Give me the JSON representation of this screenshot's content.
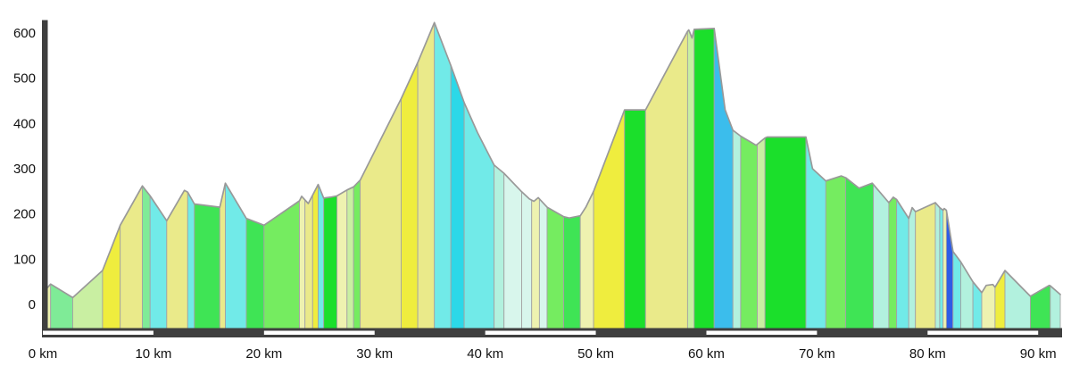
{
  "chart_data": {
    "type": "area",
    "description": "Route elevation profile with slope-colored segment bands",
    "x_unit": "km",
    "y_unit": "m",
    "xlim": [
      0,
      92
    ],
    "ylim": [
      0,
      650
    ],
    "grid": false,
    "legend": "none",
    "y_ticks": [
      {
        "m": 600,
        "label": "600"
      },
      {
        "m": 500,
        "label": "500"
      },
      {
        "m": 400,
        "label": "400"
      },
      {
        "m": 300,
        "label": "300"
      },
      {
        "m": 200,
        "label": "200"
      },
      {
        "m": 100,
        "label": "100"
      },
      {
        "m": 0,
        "label": "0"
      }
    ],
    "x_ticks": [
      {
        "km": 0,
        "label": "0 km"
      },
      {
        "km": 10,
        "label": "10 km"
      },
      {
        "km": 20,
        "label": "20 km"
      },
      {
        "km": 30,
        "label": "30 km"
      },
      {
        "km": 40,
        "label": "40 km"
      },
      {
        "km": 50,
        "label": "50 km"
      },
      {
        "km": 60,
        "label": "60 km"
      },
      {
        "km": 70,
        "label": "70 km"
      },
      {
        "km": 80,
        "label": "80 km"
      },
      {
        "km": 90,
        "label": "90 km"
      }
    ],
    "profile_points_km_m": [
      [
        0,
        25
      ],
      [
        0.7,
        45
      ],
      [
        2.7,
        15
      ],
      [
        5.4,
        75
      ],
      [
        7.0,
        175
      ],
      [
        9.0,
        262
      ],
      [
        9.7,
        240
      ],
      [
        11.2,
        185
      ],
      [
        12.8,
        252
      ],
      [
        13.1,
        248
      ],
      [
        13.7,
        222
      ],
      [
        16.0,
        215
      ],
      [
        16.5,
        268
      ],
      [
        18.4,
        190
      ],
      [
        20.0,
        175
      ],
      [
        23.2,
        229
      ],
      [
        23.4,
        239
      ],
      [
        24.0,
        223
      ],
      [
        24.9,
        265
      ],
      [
        25.4,
        235
      ],
      [
        26.0,
        237
      ],
      [
        26.6,
        240
      ],
      [
        27.5,
        253
      ],
      [
        28.1,
        260
      ],
      [
        28.7,
        275
      ],
      [
        32.4,
        455
      ],
      [
        33.9,
        535
      ],
      [
        35.4,
        623
      ],
      [
        36.9,
        528
      ],
      [
        38.1,
        446
      ],
      [
        39.3,
        380
      ],
      [
        40.8,
        308
      ],
      [
        41.7,
        290
      ],
      [
        43.3,
        249
      ],
      [
        44.0,
        233
      ],
      [
        44.4,
        228
      ],
      [
        44.8,
        236
      ],
      [
        45.6,
        215
      ],
      [
        47.1,
        194
      ],
      [
        47.6,
        191
      ],
      [
        48.6,
        196
      ],
      [
        49.1,
        215
      ],
      [
        49.8,
        250
      ],
      [
        52.6,
        430
      ],
      [
        54.5,
        430
      ],
      [
        58.3,
        604
      ],
      [
        58.4,
        607
      ],
      [
        58.7,
        589
      ],
      [
        58.9,
        608
      ],
      [
        60.7,
        610
      ],
      [
        61.7,
        430
      ],
      [
        62.4,
        385
      ],
      [
        63.1,
        372
      ],
      [
        64.5,
        352
      ],
      [
        64.6,
        354
      ],
      [
        65.3,
        368
      ],
      [
        65.5,
        370
      ],
      [
        69.0,
        370
      ],
      [
        69.6,
        300
      ],
      [
        70.8,
        273
      ],
      [
        72.2,
        284
      ],
      [
        72.6,
        280
      ],
      [
        73.8,
        257
      ],
      [
        75.0,
        268
      ],
      [
        76.5,
        225
      ],
      [
        76.9,
        237
      ],
      [
        77.2,
        232
      ],
      [
        78.3,
        190
      ],
      [
        78.6,
        214
      ],
      [
        78.9,
        205
      ],
      [
        80.7,
        225
      ],
      [
        81.1,
        214
      ],
      [
        81.4,
        208
      ],
      [
        81.5,
        212
      ],
      [
        81.7,
        208
      ],
      [
        82.3,
        117
      ],
      [
        83.0,
        94
      ],
      [
        84.1,
        50
      ],
      [
        84.9,
        26
      ],
      [
        85.3,
        42
      ],
      [
        85.9,
        44
      ],
      [
        86.1,
        38
      ],
      [
        87.0,
        75
      ],
      [
        89.3,
        18
      ],
      [
        91.0,
        42
      ],
      [
        91.1,
        41
      ],
      [
        92.0,
        22
      ]
    ],
    "bands": [
      {
        "from": 0.0,
        "to": 0.7,
        "color": "cream"
      },
      {
        "from": 0.7,
        "to": 2.7,
        "color": "spring"
      },
      {
        "from": 2.7,
        "to": 5.4,
        "color": "palegreen"
      },
      {
        "from": 5.4,
        "to": 7.0,
        "color": "yellow"
      },
      {
        "from": 7.0,
        "to": 9.0,
        "color": "paleyellow"
      },
      {
        "from": 9.0,
        "to": 9.7,
        "color": "spring"
      },
      {
        "from": 9.7,
        "to": 11.2,
        "color": "cyan"
      },
      {
        "from": 11.2,
        "to": 13.1,
        "color": "paleyellow"
      },
      {
        "from": 13.1,
        "to": 13.7,
        "color": "cyan"
      },
      {
        "from": 13.7,
        "to": 16.0,
        "color": "green2"
      },
      {
        "from": 16.0,
        "to": 16.5,
        "color": "paleyellow"
      },
      {
        "from": 16.5,
        "to": 18.4,
        "color": "cyan"
      },
      {
        "from": 18.4,
        "to": 20.0,
        "color": "green2"
      },
      {
        "from": 20.0,
        "to": 23.2,
        "color": "lightgreen"
      },
      {
        "from": 23.2,
        "to": 23.7,
        "color": "cream"
      },
      {
        "from": 23.7,
        "to": 24.4,
        "color": "paleyellow"
      },
      {
        "from": 24.4,
        "to": 24.9,
        "color": "yellow"
      },
      {
        "from": 24.9,
        "to": 25.4,
        "color": "cyan"
      },
      {
        "from": 25.4,
        "to": 26.6,
        "color": "green"
      },
      {
        "from": 26.6,
        "to": 27.5,
        "color": "cream"
      },
      {
        "from": 27.5,
        "to": 28.1,
        "color": "palegreen"
      },
      {
        "from": 28.1,
        "to": 28.7,
        "color": "lightgreen"
      },
      {
        "from": 28.7,
        "to": 32.4,
        "color": "paleyellow"
      },
      {
        "from": 32.4,
        "to": 33.9,
        "color": "yellow"
      },
      {
        "from": 33.9,
        "to": 35.4,
        "color": "paleyellow"
      },
      {
        "from": 35.4,
        "to": 36.9,
        "color": "cyan"
      },
      {
        "from": 36.9,
        "to": 38.1,
        "color": "satcyan"
      },
      {
        "from": 38.1,
        "to": 40.8,
        "color": "cyan"
      },
      {
        "from": 40.8,
        "to": 41.7,
        "color": "palecyan"
      },
      {
        "from": 41.7,
        "to": 43.3,
        "color": "mint"
      },
      {
        "from": 43.3,
        "to": 44.2,
        "color": "mint"
      },
      {
        "from": 44.2,
        "to": 44.9,
        "color": "cream"
      },
      {
        "from": 44.9,
        "to": 45.6,
        "color": "mint"
      },
      {
        "from": 45.6,
        "to": 47.1,
        "color": "lightgreen"
      },
      {
        "from": 47.1,
        "to": 48.6,
        "color": "green2"
      },
      {
        "from": 48.6,
        "to": 49.8,
        "color": "cream"
      },
      {
        "from": 49.8,
        "to": 52.6,
        "color": "yellow"
      },
      {
        "from": 52.6,
        "to": 54.5,
        "color": "green"
      },
      {
        "from": 54.5,
        "to": 58.3,
        "color": "paleyellow"
      },
      {
        "from": 58.3,
        "to": 58.9,
        "color": "palegreen"
      },
      {
        "from": 58.9,
        "to": 60.7,
        "color": "green"
      },
      {
        "from": 60.7,
        "to": 62.4,
        "color": "skyblue"
      },
      {
        "from": 62.4,
        "to": 63.1,
        "color": "palecyan"
      },
      {
        "from": 63.1,
        "to": 64.6,
        "color": "lightgreen"
      },
      {
        "from": 64.6,
        "to": 65.3,
        "color": "palegreen"
      },
      {
        "from": 65.3,
        "to": 69.0,
        "color": "green"
      },
      {
        "from": 69.0,
        "to": 70.8,
        "color": "cyan"
      },
      {
        "from": 70.8,
        "to": 72.6,
        "color": "lightgreen"
      },
      {
        "from": 72.6,
        "to": 75.1,
        "color": "green2"
      },
      {
        "from": 75.1,
        "to": 76.5,
        "color": "palecyan"
      },
      {
        "from": 76.5,
        "to": 77.2,
        "color": "lightgreen"
      },
      {
        "from": 77.2,
        "to": 78.3,
        "color": "cyan"
      },
      {
        "from": 78.3,
        "to": 78.9,
        "color": "palecyan"
      },
      {
        "from": 78.9,
        "to": 80.7,
        "color": "paleyellow"
      },
      {
        "from": 80.7,
        "to": 81.1,
        "color": "palecyan"
      },
      {
        "from": 81.1,
        "to": 81.4,
        "color": "cyan"
      },
      {
        "from": 81.4,
        "to": 81.7,
        "color": "cream"
      },
      {
        "from": 81.7,
        "to": 82.3,
        "color": "royalblue"
      },
      {
        "from": 82.3,
        "to": 83.0,
        "color": "cyan"
      },
      {
        "from": 83.0,
        "to": 84.1,
        "color": "palecyan"
      },
      {
        "from": 84.1,
        "to": 84.9,
        "color": "cyan"
      },
      {
        "from": 84.9,
        "to": 86.1,
        "color": "cream"
      },
      {
        "from": 86.1,
        "to": 87.0,
        "color": "yellow"
      },
      {
        "from": 87.0,
        "to": 89.3,
        "color": "palecyan"
      },
      {
        "from": 89.3,
        "to": 91.1,
        "color": "green2"
      },
      {
        "from": 91.1,
        "to": 92.0,
        "color": "palecyan"
      }
    ],
    "palette": {
      "cream": "#eef2b0",
      "paleyellow": "#eaea8a",
      "yellow": "#efed3e",
      "palegreen": "#c9efa2",
      "lightgreen": "#75ec60",
      "spring": "#7feb97",
      "green2": "#3fe455",
      "green": "#1bdf2b",
      "cyan": "#71eae8",
      "satcyan": "#2cd8e8",
      "palecyan": "#b2f1de",
      "mint": "#d8f6ec",
      "skyblue": "#3bbdec",
      "royalblue": "#2e5ce5"
    },
    "scalebar": {
      "bar_color": "#3f3f3f",
      "stripe_color": "#ffffff",
      "white_intervals_km": [
        [
          0,
          10
        ],
        [
          20,
          30
        ],
        [
          40,
          50
        ],
        [
          60,
          70
        ],
        [
          80,
          90
        ]
      ]
    },
    "outline_color": "#999999",
    "separator_color": "#a3a3a3",
    "axis_color": "#3f3f3f",
    "label_color": "#111111"
  }
}
